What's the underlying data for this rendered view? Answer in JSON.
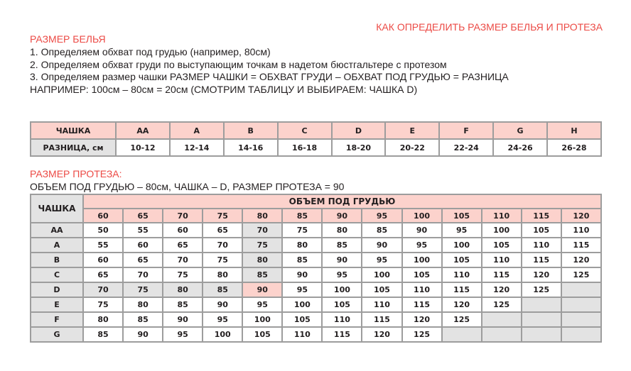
{
  "title": "КАК ОПРЕДЕЛИТЬ РАЗМЕР БЕЛЬЯ И ПРОТЕЗА",
  "section1": {
    "heading": "РАЗМЕР БЕЛЬЯ",
    "lines": [
      "1. Определяем обхват под грудью (например, 80см)",
      "2. Определяем обхват груди по выступающим точкам в надетом бюстгальтере с протезом",
      "3. Определяем размер чашки  РАЗМЕР ЧАШКИ = ОБХВАТ ГРУДИ – ОБХВАТ ПОД ГРУДЬЮ = РАЗНИЦА",
      "НАПРИМЕР: 100см – 80см = 20см (СМОТРИМ ТАБЛИЦУ И ВЫБИРАЕМ: ЧАШКА D)"
    ]
  },
  "cup_table": {
    "row1_label": "ЧАШКА",
    "row2_label": "РАЗНИЦА, см",
    "cups": [
      "AA",
      "A",
      "B",
      "C",
      "D",
      "E",
      "F",
      "G",
      "H"
    ],
    "diffs": [
      "10-12",
      "12-14",
      "14-16",
      "16-18",
      "18-20",
      "20-22",
      "22-24",
      "24-26",
      "26-28"
    ]
  },
  "section2": {
    "heading": "РАЗМЕР ПРОТЕЗА:",
    "example": "ОБЪЕМ ПОД ГРУДЬЮ – 80см, ЧАШКА – D, РАЗМЕР ПРОТЕЗА = 90"
  },
  "prosthesis_table": {
    "corner_label": "ЧАШКА",
    "group_header": "ОБЪЕМ ПОД ГРУДЬЮ",
    "underbust": [
      "60",
      "65",
      "70",
      "75",
      "80",
      "85",
      "90",
      "95",
      "100",
      "105",
      "110",
      "115",
      "120"
    ],
    "rows": [
      {
        "cup": "AA",
        "values": [
          "50",
          "55",
          "60",
          "65",
          "70",
          "75",
          "80",
          "85",
          "90",
          "95",
          "100",
          "105",
          "110"
        ]
      },
      {
        "cup": "A",
        "values": [
          "55",
          "60",
          "65",
          "70",
          "75",
          "80",
          "85",
          "90",
          "95",
          "100",
          "105",
          "110",
          "115"
        ]
      },
      {
        "cup": "B",
        "values": [
          "60",
          "65",
          "70",
          "75",
          "80",
          "85",
          "90",
          "95",
          "100",
          "105",
          "110",
          "115",
          "120"
        ]
      },
      {
        "cup": "C",
        "values": [
          "65",
          "70",
          "75",
          "80",
          "85",
          "90",
          "95",
          "100",
          "105",
          "110",
          "115",
          "120",
          "125"
        ]
      },
      {
        "cup": "D",
        "values": [
          "70",
          "75",
          "80",
          "85",
          "90",
          "95",
          "100",
          "105",
          "110",
          "115",
          "120",
          "125",
          ""
        ]
      },
      {
        "cup": "E",
        "values": [
          "75",
          "80",
          "85",
          "90",
          "95",
          "100",
          "105",
          "110",
          "115",
          "120",
          "125",
          "",
          ""
        ]
      },
      {
        "cup": "F",
        "values": [
          "80",
          "85",
          "90",
          "95",
          "100",
          "105",
          "110",
          "115",
          "120",
          "125",
          "",
          "",
          ""
        ]
      },
      {
        "cup": "G",
        "values": [
          "85",
          "90",
          "95",
          "100",
          "105",
          "110",
          "115",
          "120",
          "125",
          "",
          "",
          "",
          ""
        ]
      }
    ],
    "highlight": {
      "cup": "D",
      "underbust": "80"
    }
  },
  "colors": {
    "accent": "#ec4a45",
    "header_pink": "#fcd2cc",
    "label_gray": "#e3e3e3"
  }
}
